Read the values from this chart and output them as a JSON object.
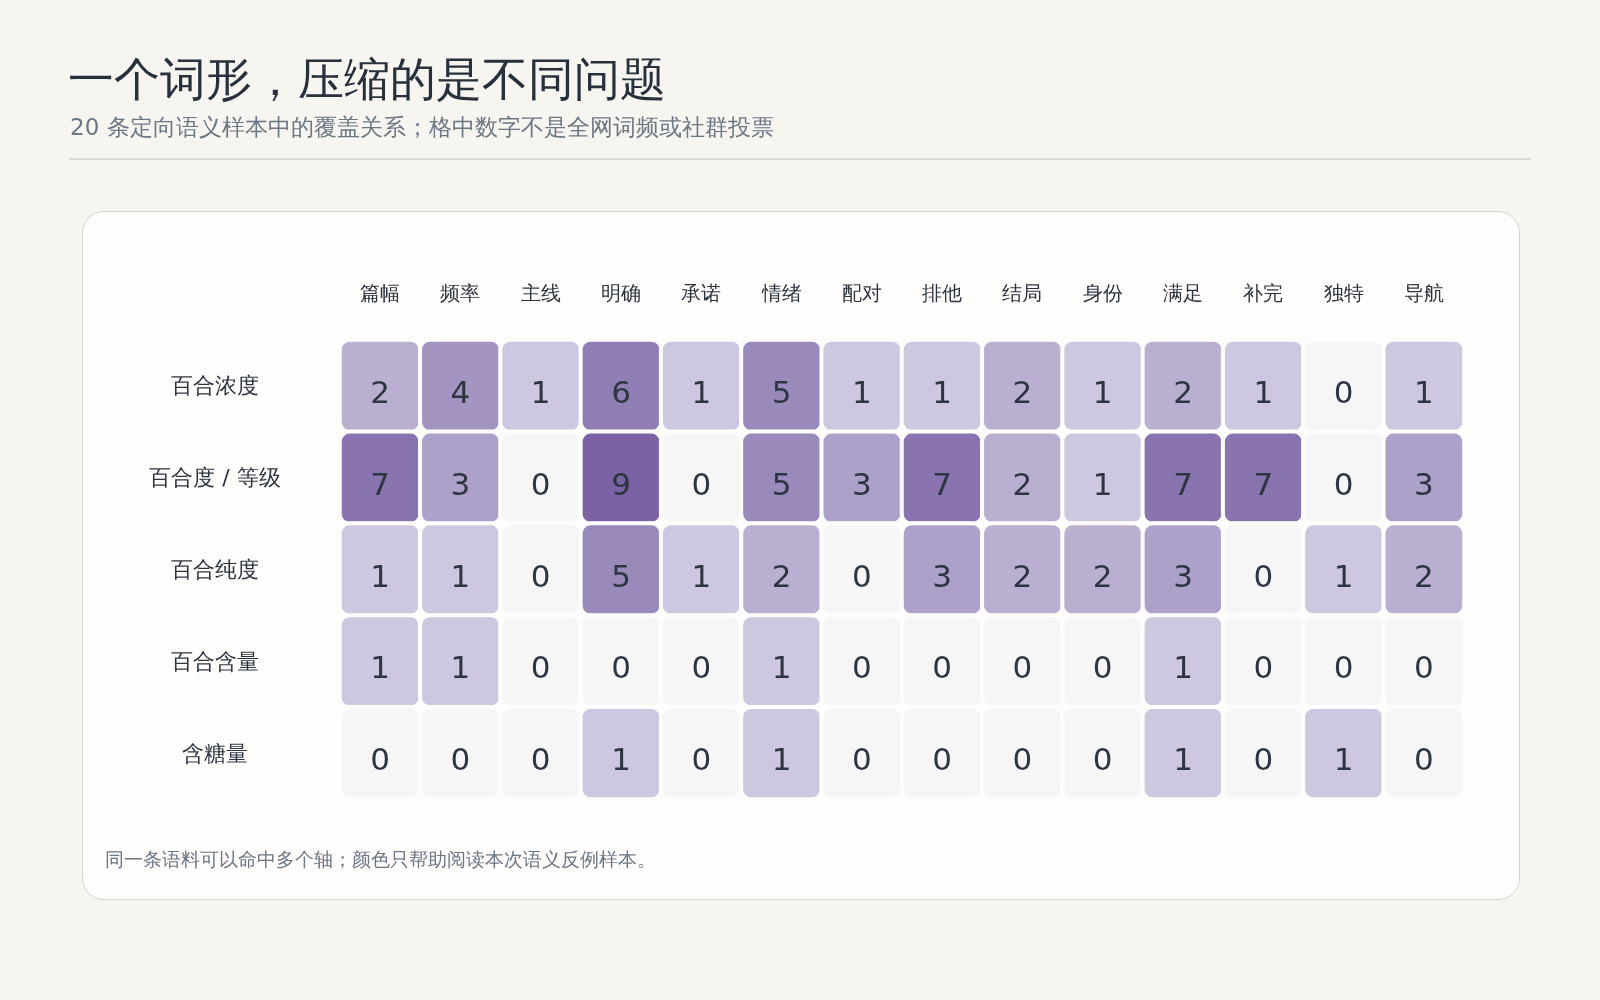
{
  "chart_data": {
    "type": "heatmap",
    "title": "一个词形，压缩的是不同问题",
    "subtitle": "20 条定向语义样本中的覆盖关系；格中数字不是全网词频或社群投票",
    "categories": [
      "篇幅",
      "频率",
      "主线",
      "明确",
      "承诺",
      "情绪",
      "配对",
      "排他",
      "结局",
      "身份",
      "满足",
      "补完",
      "独特",
      "导航"
    ],
    "y_categories": [
      "百合浓度",
      "百合度 / 等级",
      "百合纯度",
      "百合含量",
      "含糖量"
    ],
    "cells": [
      [
        2,
        4,
        1,
        6,
        1,
        5,
        1,
        1,
        2,
        1,
        2,
        1,
        0,
        1
      ],
      [
        7,
        3,
        0,
        9,
        0,
        5,
        3,
        7,
        2,
        1,
        7,
        7,
        0,
        3
      ],
      [
        1,
        1,
        0,
        5,
        1,
        2,
        0,
        3,
        2,
        2,
        3,
        0,
        1,
        2
      ],
      [
        1,
        1,
        0,
        0,
        0,
        1,
        0,
        0,
        0,
        0,
        1,
        0,
        0,
        0
      ],
      [
        0,
        0,
        0,
        1,
        0,
        1,
        0,
        0,
        0,
        0,
        1,
        0,
        1,
        0
      ]
    ],
    "data_labels": true,
    "annotations": [
      "同一条语料可以命中多个轴；颜色只帮助阅读本次语义反例样本。"
    ]
  }
}
